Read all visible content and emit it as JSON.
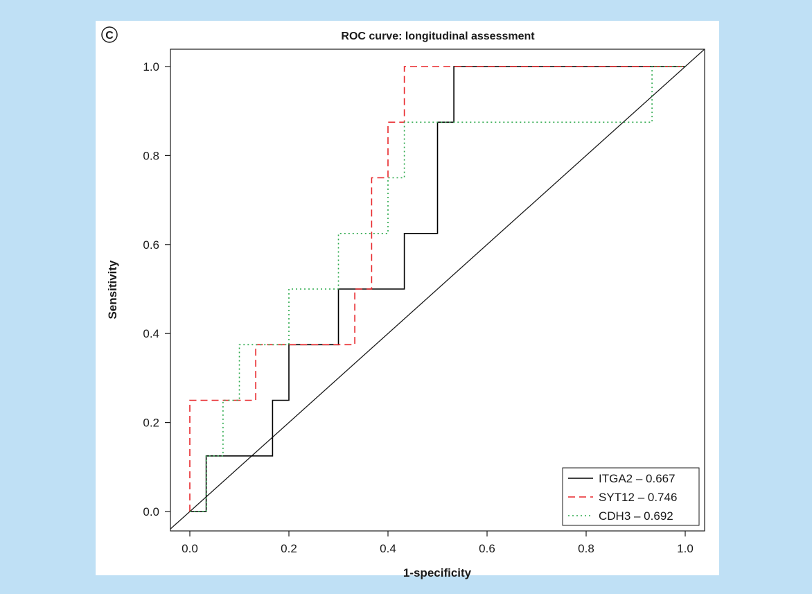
{
  "panel": {
    "letter": "C"
  },
  "chart_data": {
    "type": "line",
    "title": "ROC curve: longitudinal assessment",
    "xlabel": "1-specificity",
    "ylabel": "Sensitivity",
    "xlim": [
      0,
      1
    ],
    "ylim": [
      0,
      1
    ],
    "xticks": [
      "0.0",
      "0.2",
      "0.4",
      "0.6",
      "0.8",
      "1.0"
    ],
    "yticks": [
      "0.0",
      "0.2",
      "0.4",
      "0.6",
      "0.8",
      "1.0"
    ],
    "grid": false,
    "legend_position": "bottom-right",
    "diagonal_reference": true,
    "series": [
      {
        "name": "ITGA2 – 0.667",
        "color": "#000000",
        "dash": "solid",
        "x": [
          0.0,
          0.033,
          0.033,
          0.167,
          0.167,
          0.2,
          0.2,
          0.3,
          0.3,
          0.433,
          0.433,
          0.5,
          0.5,
          0.533,
          0.533,
          1.0
        ],
        "y": [
          0.0,
          0.0,
          0.125,
          0.125,
          0.25,
          0.25,
          0.375,
          0.375,
          0.5,
          0.5,
          0.625,
          0.625,
          0.875,
          0.875,
          1.0,
          1.0
        ]
      },
      {
        "name": "SYT12 – 0.746",
        "color": "#e8262a",
        "dash": "dashed",
        "x": [
          0.0,
          0.0,
          0.133,
          0.133,
          0.333,
          0.333,
          0.367,
          0.367,
          0.4,
          0.4,
          0.433,
          0.433,
          1.0
        ],
        "y": [
          0.0,
          0.25,
          0.25,
          0.375,
          0.375,
          0.5,
          0.5,
          0.75,
          0.75,
          0.875,
          0.875,
          1.0,
          1.0
        ]
      },
      {
        "name": "CDH3 – 0.692",
        "color": "#2aa84a",
        "dash": "dotted",
        "x": [
          0.0,
          0.033,
          0.033,
          0.067,
          0.067,
          0.1,
          0.1,
          0.2,
          0.2,
          0.3,
          0.3,
          0.4,
          0.4,
          0.433,
          0.433,
          0.933,
          0.933,
          1.0
        ],
        "y": [
          0.0,
          0.0,
          0.125,
          0.125,
          0.25,
          0.25,
          0.375,
          0.375,
          0.5,
          0.5,
          0.625,
          0.625,
          0.75,
          0.75,
          0.875,
          0.875,
          1.0,
          1.0
        ]
      }
    ]
  }
}
